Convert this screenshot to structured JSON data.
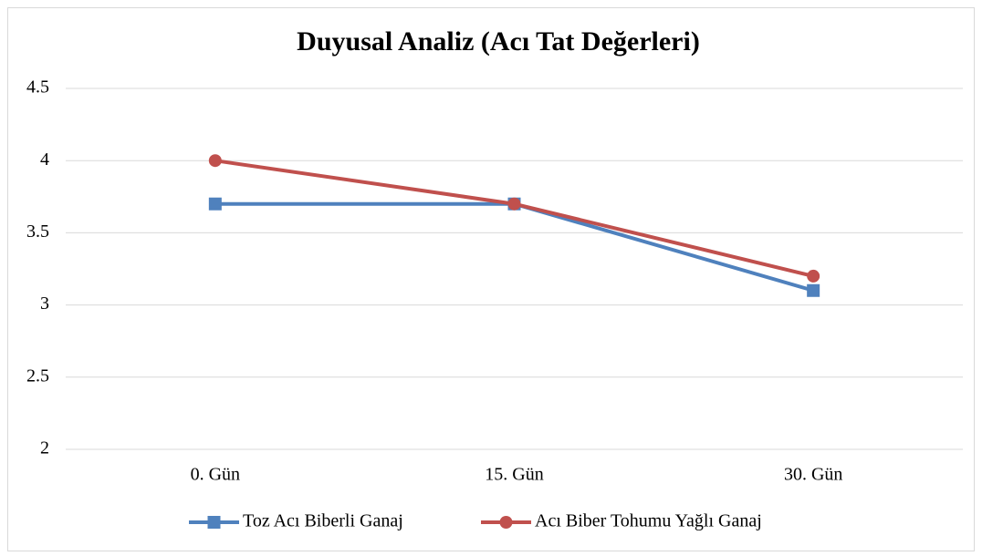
{
  "chart_data": {
    "type": "line",
    "title": "Duyusal Analiz (Acı Tat Değerleri)",
    "categories": [
      "0. Gün",
      "15. Gün",
      "30. Gün"
    ],
    "series": [
      {
        "name": "Toz Acı Biberli Ganaj",
        "color": "#4f81bd",
        "marker": "square",
        "values": [
          3.7,
          3.7,
          3.1
        ]
      },
      {
        "name": "Acı Biber Tohumu Yağlı Ganaj",
        "color": "#c0504d",
        "marker": "circle",
        "values": [
          4,
          3.7,
          3.2
        ]
      }
    ],
    "ylim": [
      2,
      4.5
    ],
    "yticks": [
      2,
      2.5,
      3,
      3.5,
      4,
      4.5
    ],
    "grid": true,
    "legend": "bottom"
  }
}
